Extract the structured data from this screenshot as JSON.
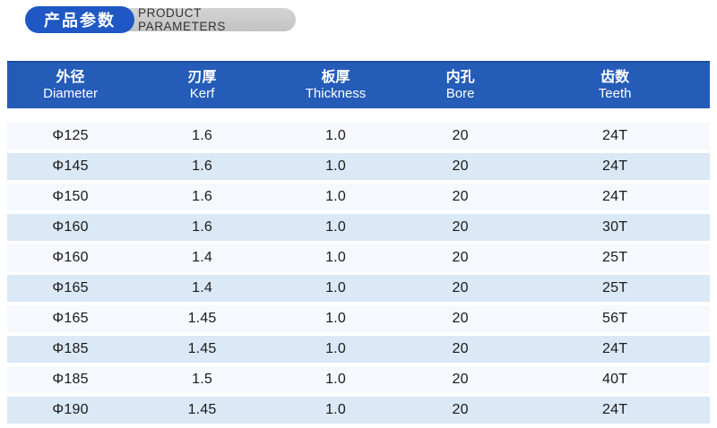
{
  "header": {
    "badge_zh": "产品参数",
    "badge_en": "PRODUCT PARAMETERS"
  },
  "colors": {
    "badge_blue": "#1f58c4",
    "header_blue": "#245cb8",
    "header_blue_dark": "#1c4ca3",
    "pill_text": "#333333",
    "row_light": "#f5f8fc",
    "row_alt": "#dbe8f5",
    "cell_text": "#1a1a1a"
  },
  "table": {
    "columns": [
      {
        "zh": "外径",
        "en": "Diameter"
      },
      {
        "zh": "刃厚",
        "en": "Kerf"
      },
      {
        "zh": "板厚",
        "en": "Thickness"
      },
      {
        "zh": "内孔",
        "en": "Bore"
      },
      {
        "zh": "齿数",
        "en": "Teeth"
      }
    ],
    "rows": [
      [
        "Φ125",
        "1.6",
        "1.0",
        "20",
        "24T"
      ],
      [
        "Φ145",
        "1.6",
        "1.0",
        "20",
        "24T"
      ],
      [
        "Φ150",
        "1.6",
        "1.0",
        "20",
        "24T"
      ],
      [
        "Φ160",
        "1.6",
        "1.0",
        "20",
        "30T"
      ],
      [
        "Φ160",
        "1.4",
        "1.0",
        "20",
        "25T"
      ],
      [
        "Φ165",
        "1.4",
        "1.0",
        "20",
        "25T"
      ],
      [
        "Φ165",
        "1.45",
        "1.0",
        "20",
        "56T"
      ],
      [
        "Φ185",
        "1.45",
        "1.0",
        "20",
        "24T"
      ],
      [
        "Φ185",
        "1.5",
        "1.0",
        "20",
        "40T"
      ],
      [
        "Φ190",
        "1.45",
        "1.0",
        "20",
        "24T"
      ]
    ]
  }
}
